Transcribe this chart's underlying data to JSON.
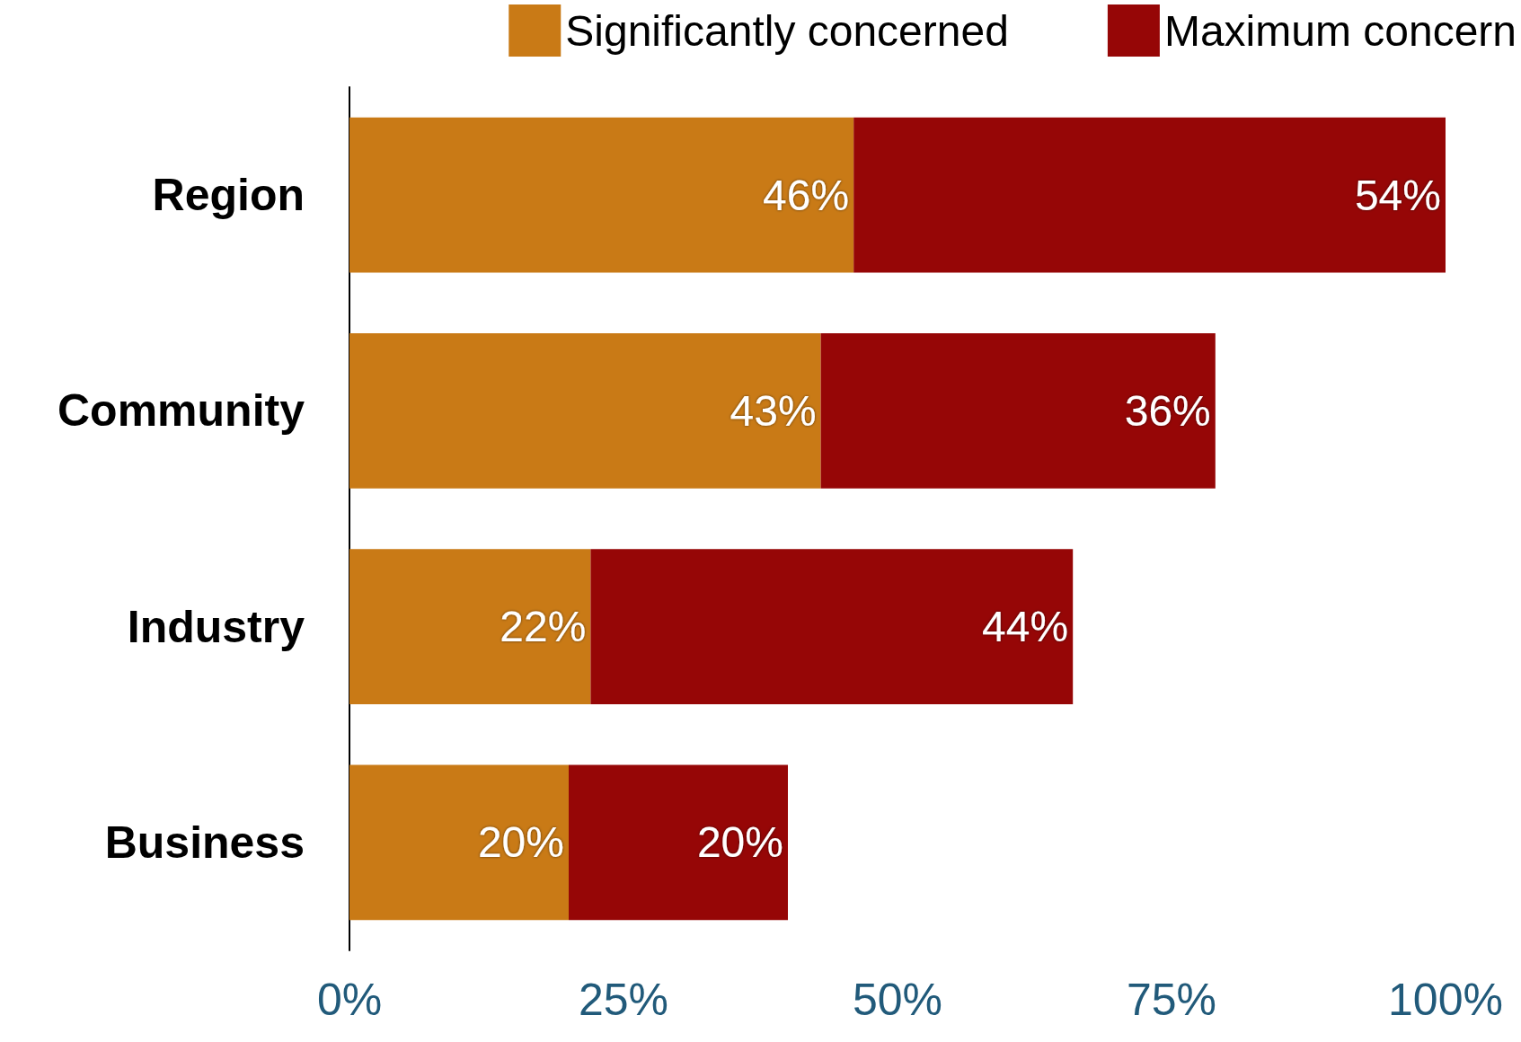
{
  "chart_data": {
    "type": "bar",
    "orientation": "horizontal",
    "stacked": true,
    "categories": [
      "Region",
      "Community",
      "Industry",
      "Business"
    ],
    "series": [
      {
        "name": "Significantly concerned",
        "color": "#c97a16",
        "values": [
          46,
          43,
          22,
          20
        ],
        "value_labels": [
          "46%",
          "43%",
          "22%",
          "20%"
        ]
      },
      {
        "name": "Maximum concern",
        "color": "#960606",
        "values": [
          54,
          36,
          44,
          20
        ],
        "value_labels": [
          "54%",
          "36%",
          "44%",
          "20%"
        ]
      }
    ],
    "xlim": [
      0,
      100
    ],
    "xticks": [
      {
        "value": 0,
        "label": "0%"
      },
      {
        "value": 25,
        "label": "25%"
      },
      {
        "value": 50,
        "label": "50%"
      },
      {
        "value": 75,
        "label": "75%"
      },
      {
        "value": 100,
        "label": "100%"
      }
    ],
    "grid": false,
    "legend": "top"
  }
}
